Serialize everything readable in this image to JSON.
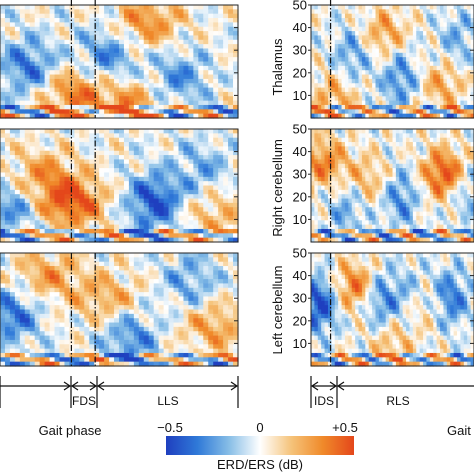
{
  "colorbar": {
    "min_label": "−0.5",
    "mid_label": "0",
    "max_label": "+0.5",
    "title": "ERD/ERS (dB)",
    "stops": [
      "#1f3fbf",
      "#2f79d8",
      "#86bde6",
      "#ffffff",
      "#f5c37a",
      "#f08a2a",
      "#e4471b"
    ]
  },
  "chart_data": [
    {
      "type": "heatmap",
      "panel": "left-top",
      "ylim": [
        0,
        50
      ],
      "markers": [
        0.3,
        0.4
      ],
      "hot_spots": [
        [
          0.31,
          0.22,
          0.75
        ],
        [
          0.55,
          0.12,
          0.6
        ],
        [
          0.62,
          0.85,
          0.65
        ]
      ],
      "cold_spots": [
        [
          0.12,
          0.45,
          0.7
        ],
        [
          0.45,
          0.55,
          0.6
        ],
        [
          0.75,
          0.35,
          0.55
        ]
      ]
    },
    {
      "type": "heatmap",
      "panel": "left-middle",
      "ylim": [
        0,
        50
      ],
      "markers": [
        0.3,
        0.4
      ],
      "hot_spots": [
        [
          0.3,
          0.35,
          0.95
        ],
        [
          0.18,
          0.6,
          0.55
        ],
        [
          0.9,
          0.25,
          0.45
        ]
      ],
      "cold_spots": [
        [
          0.65,
          0.35,
          0.9
        ],
        [
          0.05,
          0.3,
          0.55
        ],
        [
          0.85,
          0.65,
          0.4
        ]
      ]
    },
    {
      "type": "heatmap",
      "panel": "left-bottom",
      "ylim": [
        0,
        50
      ],
      "markers": [
        0.3,
        0.4
      ],
      "hot_spots": [
        [
          0.2,
          0.8,
          0.55
        ],
        [
          0.45,
          0.6,
          0.5
        ],
        [
          0.9,
          0.35,
          0.55
        ]
      ],
      "cold_spots": [
        [
          0.05,
          0.45,
          0.7
        ],
        [
          0.55,
          0.25,
          0.6
        ],
        [
          0.8,
          0.75,
          0.45
        ]
      ]
    },
    {
      "type": "heatmap",
      "panel": "right-top",
      "ylabel": "Thalamus",
      "ylim": [
        0,
        50
      ],
      "yticks": [
        10,
        20,
        30,
        40,
        50
      ],
      "markers": [
        0.12
      ],
      "hot_spots": [
        [
          0.45,
          0.75,
          0.55
        ],
        [
          0.15,
          0.2,
          0.5
        ],
        [
          0.8,
          0.3,
          0.5
        ]
      ],
      "cold_spots": [
        [
          0.55,
          0.35,
          0.6
        ],
        [
          0.25,
          0.55,
          0.5
        ],
        [
          0.9,
          0.7,
          0.4
        ]
      ]
    },
    {
      "type": "heatmap",
      "panel": "right-middle",
      "ylabel": "Right cerebellum",
      "ylim": [
        0,
        50
      ],
      "yticks": [
        10,
        20,
        30,
        40,
        50
      ],
      "markers": [
        0.12
      ],
      "hot_spots": [
        [
          0.82,
          0.6,
          1.0
        ],
        [
          0.08,
          0.7,
          0.7
        ],
        [
          0.35,
          0.55,
          0.45
        ]
      ],
      "cold_spots": [
        [
          0.55,
          0.4,
          0.6
        ],
        [
          0.22,
          0.3,
          0.45
        ],
        [
          0.95,
          0.45,
          0.45
        ]
      ]
    },
    {
      "type": "heatmap",
      "panel": "right-bottom",
      "ylabel": "Left cerebellum",
      "ylim": [
        0,
        50
      ],
      "yticks": [
        10,
        20,
        30,
        40,
        50
      ],
      "markers": [
        0.12
      ],
      "hot_spots": [
        [
          0.28,
          0.7,
          0.85
        ],
        [
          0.68,
          0.55,
          0.6
        ],
        [
          0.5,
          0.2,
          0.4
        ]
      ],
      "cold_spots": [
        [
          0.05,
          0.55,
          0.95
        ],
        [
          0.42,
          0.6,
          0.75
        ],
        [
          0.62,
          0.6,
          0.55
        ],
        [
          0.85,
          0.6,
          0.75
        ]
      ]
    }
  ],
  "gait_axis_left": {
    "phases": [
      "FDS",
      "LLS"
    ],
    "caption": "Gait phase"
  },
  "gait_axis_right": {
    "phases": [
      "IDS",
      "RLS"
    ],
    "caption": "Gait"
  }
}
